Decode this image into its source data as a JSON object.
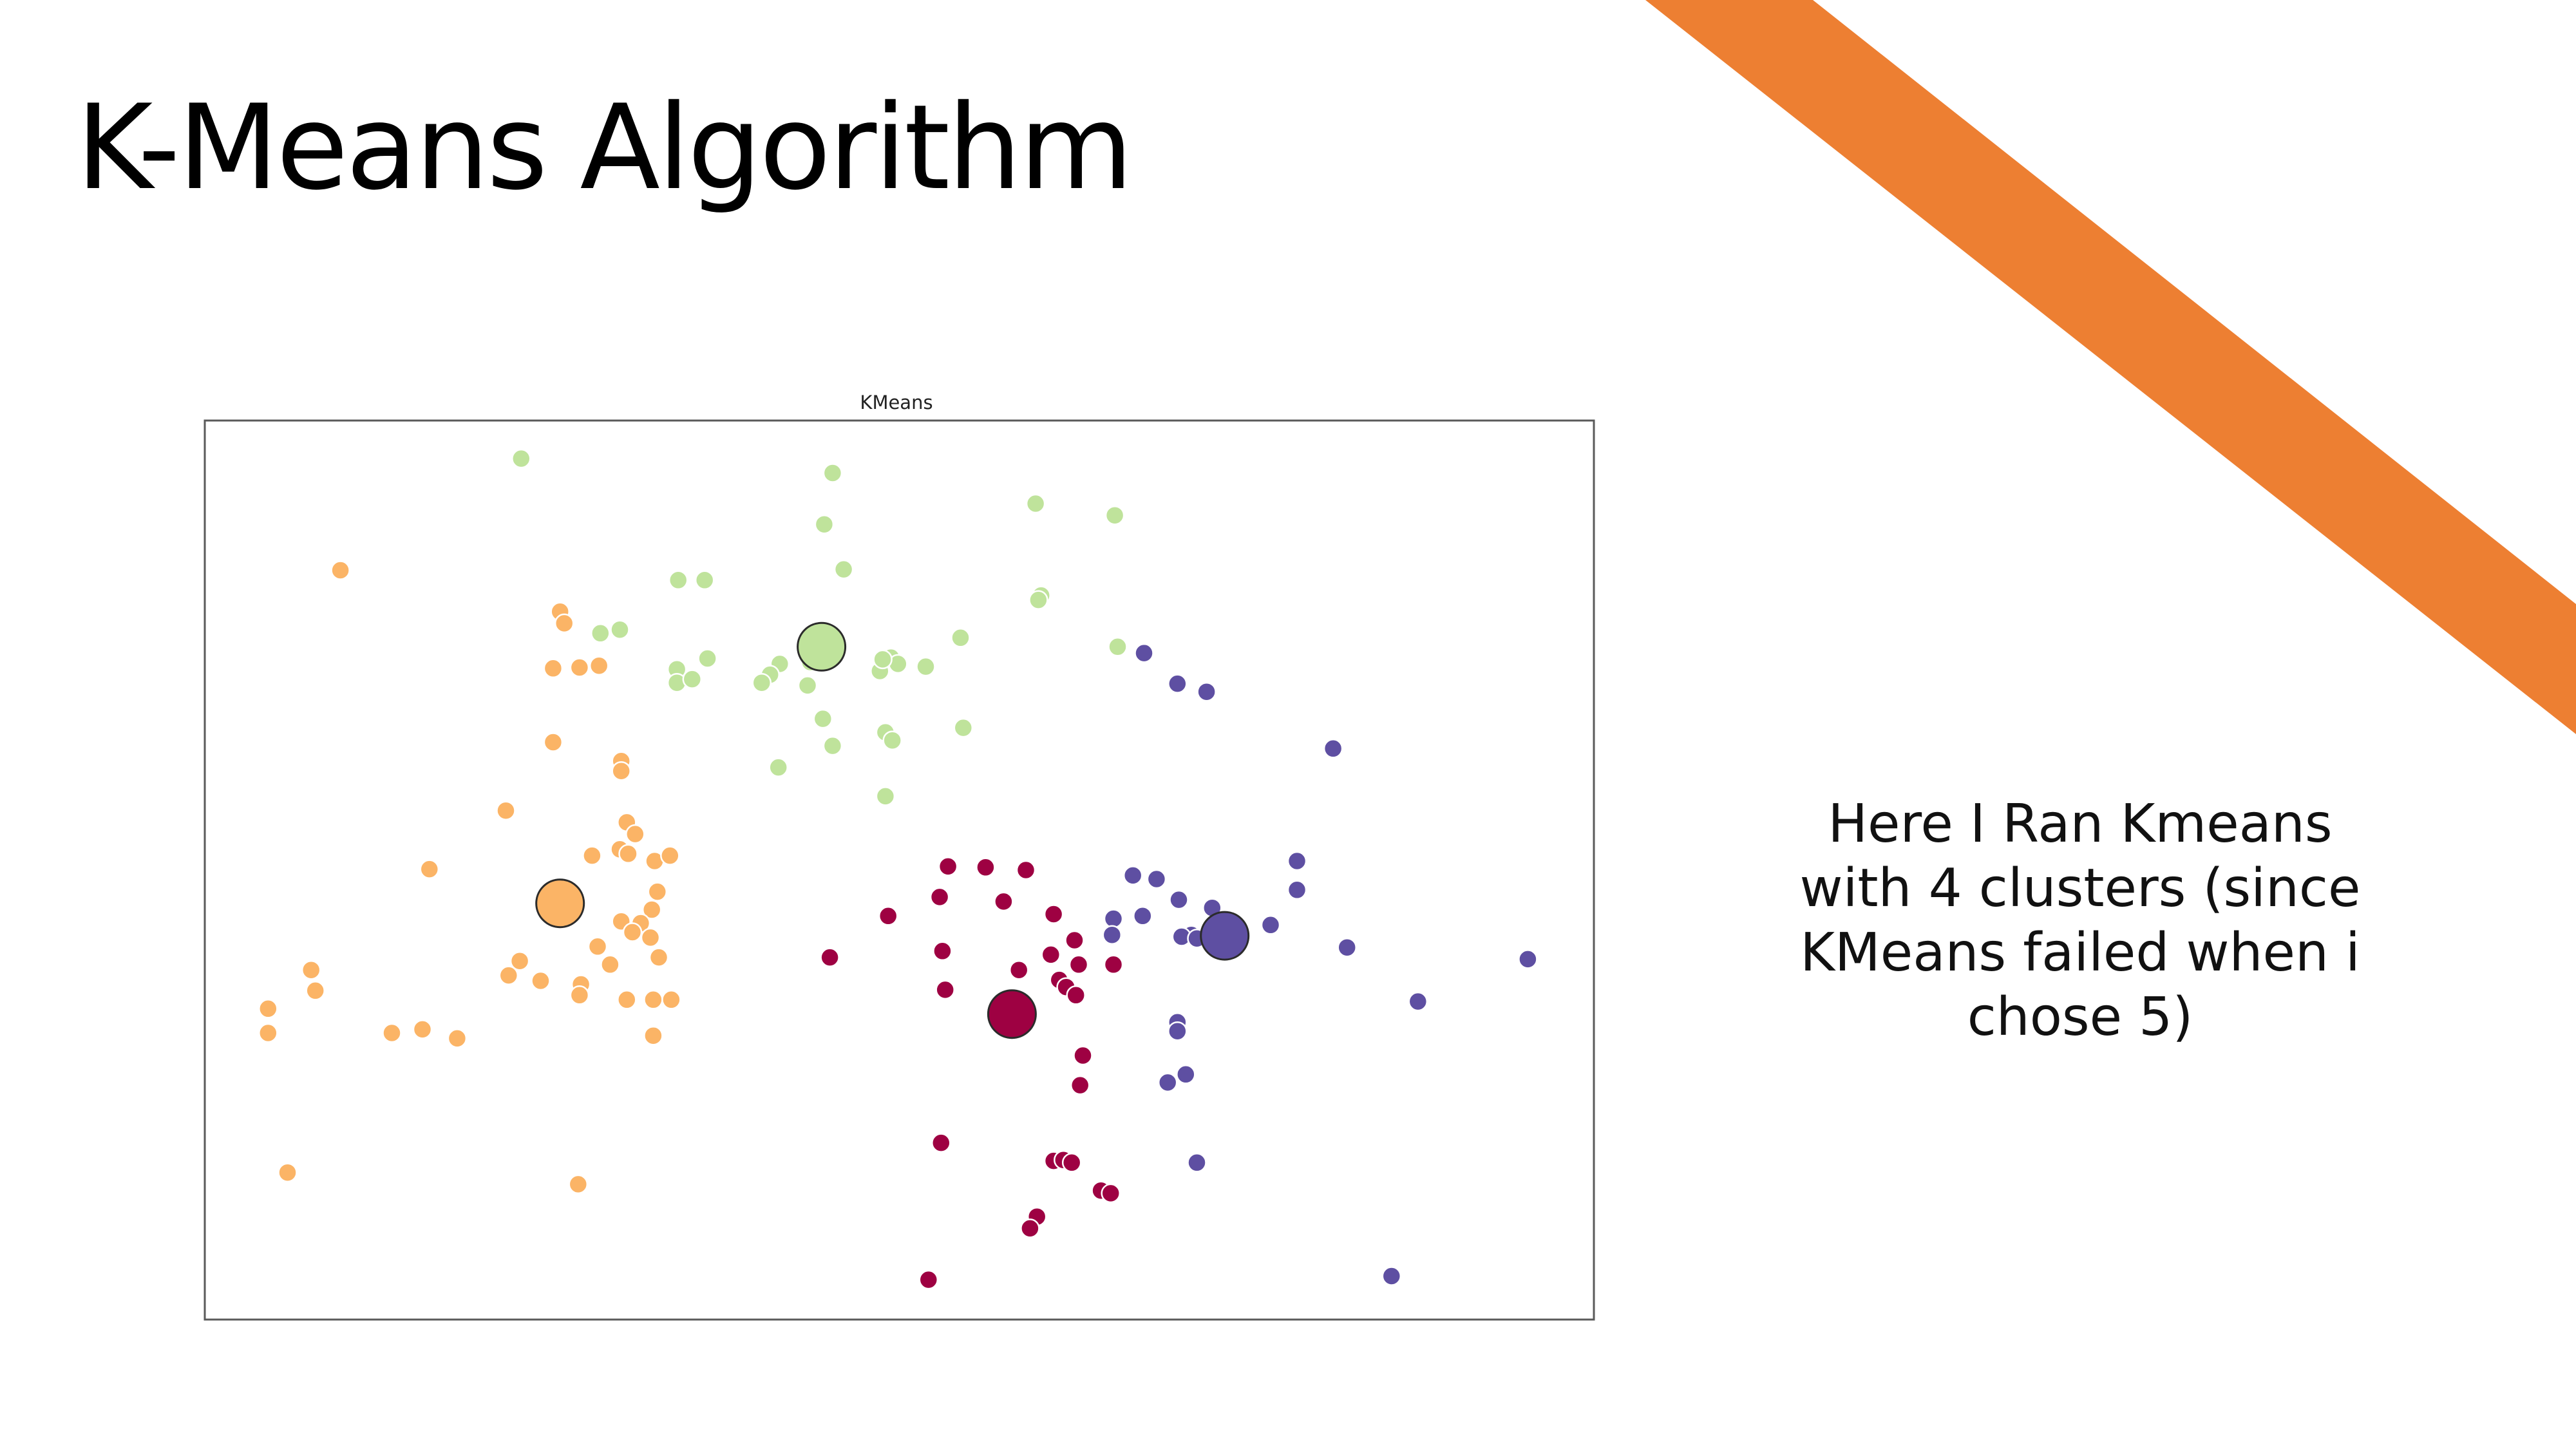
{
  "slide": {
    "title": "K-Means Algorithm",
    "caption": "Here I Ran Kmeans with 4 clusters (since KMeans failed when i chose 5)",
    "accent_color": "#ed7f32"
  },
  "chart_data": {
    "type": "scatter",
    "title": "KMeans",
    "xlabel": "",
    "ylabel": "",
    "xlim": [
      0,
      100
    ],
    "ylim": [
      0,
      100
    ],
    "grid": false,
    "axes_ticks": false,
    "series": [
      {
        "color": "#fbb466",
        "points": [
          [
            9.8,
            83.3
          ],
          [
            25.6,
            78.7
          ],
          [
            25.9,
            77.4
          ],
          [
            25.1,
            72.4
          ],
          [
            27.0,
            72.5
          ],
          [
            28.4,
            72.7
          ],
          [
            25.1,
            64.2
          ],
          [
            30.0,
            62.1
          ],
          [
            30.0,
            61.0
          ],
          [
            21.7,
            56.6
          ],
          [
            30.4,
            55.3
          ],
          [
            31.0,
            54.0
          ],
          [
            29.9,
            52.3
          ],
          [
            27.9,
            51.6
          ],
          [
            30.5,
            51.8
          ],
          [
            32.4,
            51.0
          ],
          [
            33.5,
            51.6
          ],
          [
            16.2,
            50.1
          ],
          [
            32.6,
            47.6
          ],
          [
            32.2,
            45.6
          ],
          [
            30.0,
            44.3
          ],
          [
            31.4,
            44.1
          ],
          [
            30.8,
            43.1
          ],
          [
            32.1,
            42.5
          ],
          [
            28.3,
            41.5
          ],
          [
            32.7,
            40.3
          ],
          [
            22.7,
            39.9
          ],
          [
            29.2,
            39.5
          ],
          [
            7.7,
            38.9
          ],
          [
            21.9,
            38.3
          ],
          [
            24.2,
            37.7
          ],
          [
            27.1,
            37.3
          ],
          [
            8.0,
            36.6
          ],
          [
            27.0,
            36.1
          ],
          [
            30.4,
            35.6
          ],
          [
            32.3,
            35.6
          ],
          [
            33.6,
            35.6
          ],
          [
            4.6,
            34.6
          ],
          [
            4.6,
            31.9
          ],
          [
            13.5,
            31.9
          ],
          [
            15.7,
            32.3
          ],
          [
            18.2,
            31.3
          ],
          [
            32.3,
            31.6
          ],
          [
            6.0,
            16.4
          ],
          [
            26.9,
            15.1
          ]
        ]
      },
      {
        "color": "#bfe39b",
        "points": [
          [
            22.8,
            95.7
          ],
          [
            45.2,
            94.1
          ],
          [
            44.6,
            88.4
          ],
          [
            59.8,
            90.7
          ],
          [
            65.5,
            89.4
          ],
          [
            46.0,
            83.4
          ],
          [
            34.1,
            82.2
          ],
          [
            36.0,
            82.2
          ],
          [
            60.2,
            80.5
          ],
          [
            60.0,
            80.0
          ],
          [
            28.5,
            76.3
          ],
          [
            29.9,
            76.7
          ],
          [
            54.4,
            75.8
          ],
          [
            65.7,
            74.8
          ],
          [
            36.2,
            73.5
          ],
          [
            41.4,
            72.9
          ],
          [
            43.6,
            73.1
          ],
          [
            48.8,
            73.5
          ],
          [
            49.4,
            73.6
          ],
          [
            49.9,
            72.9
          ],
          [
            51.9,
            72.6
          ],
          [
            34.0,
            72.3
          ],
          [
            34.0,
            70.8
          ],
          [
            35.1,
            71.2
          ],
          [
            40.7,
            71.7
          ],
          [
            40.1,
            70.8
          ],
          [
            48.6,
            72.1
          ],
          [
            48.8,
            73.4
          ],
          [
            43.4,
            70.5
          ],
          [
            44.5,
            66.8
          ],
          [
            49.0,
            65.3
          ],
          [
            54.6,
            65.8
          ],
          [
            49.5,
            64.4
          ],
          [
            45.2,
            63.8
          ],
          [
            41.3,
            61.4
          ],
          [
            49.0,
            58.2
          ]
        ]
      },
      {
        "color": "#9e0142",
        "points": [
          [
            53.5,
            50.4
          ],
          [
            56.2,
            50.3
          ],
          [
            59.1,
            50.0
          ],
          [
            52.9,
            47.0
          ],
          [
            57.5,
            46.5
          ],
          [
            61.1,
            45.1
          ],
          [
            49.2,
            44.9
          ],
          [
            62.6,
            42.2
          ],
          [
            53.1,
            41.0
          ],
          [
            60.9,
            40.6
          ],
          [
            45.0,
            40.3
          ],
          [
            62.9,
            39.5
          ],
          [
            65.4,
            39.5
          ],
          [
            58.6,
            38.9
          ],
          [
            61.5,
            37.8
          ],
          [
            62.0,
            37.0
          ],
          [
            53.3,
            36.7
          ],
          [
            62.7,
            36.1
          ],
          [
            63.2,
            29.4
          ],
          [
            63.0,
            26.1
          ],
          [
            53.0,
            19.7
          ],
          [
            61.1,
            17.7
          ],
          [
            61.8,
            17.8
          ],
          [
            62.4,
            17.5
          ],
          [
            64.5,
            14.4
          ],
          [
            65.2,
            14.1
          ],
          [
            59.9,
            11.5
          ],
          [
            59.4,
            10.2
          ],
          [
            52.1,
            4.5
          ]
        ]
      },
      {
        "color": "#5e4fa2",
        "points": [
          [
            67.6,
            74.1
          ],
          [
            70.0,
            70.7
          ],
          [
            72.1,
            69.8
          ],
          [
            81.2,
            63.5
          ],
          [
            78.6,
            51.0
          ],
          [
            66.8,
            49.4
          ],
          [
            68.5,
            49.0
          ],
          [
            78.6,
            47.8
          ],
          [
            70.1,
            46.7
          ],
          [
            72.5,
            45.8
          ],
          [
            65.4,
            44.6
          ],
          [
            67.5,
            44.9
          ],
          [
            76.7,
            43.9
          ],
          [
            65.3,
            42.8
          ],
          [
            71.0,
            42.8
          ],
          [
            70.3,
            42.6
          ],
          [
            71.4,
            42.4
          ],
          [
            82.2,
            41.4
          ],
          [
            95.2,
            40.1
          ],
          [
            87.3,
            35.4
          ],
          [
            70.0,
            33.1
          ],
          [
            70.0,
            32.1
          ],
          [
            70.6,
            27.3
          ],
          [
            69.3,
            26.4
          ],
          [
            71.4,
            17.5
          ],
          [
            85.4,
            4.9
          ]
        ]
      }
    ],
    "centroids": [
      {
        "color": "#fbb466",
        "x": 25.6,
        "y": 46.3
      },
      {
        "color": "#bfe39b",
        "x": 44.4,
        "y": 74.8
      },
      {
        "color": "#9e0142",
        "x": 58.1,
        "y": 34.0
      },
      {
        "color": "#5e4fa2",
        "x": 73.4,
        "y": 42.7
      }
    ]
  }
}
